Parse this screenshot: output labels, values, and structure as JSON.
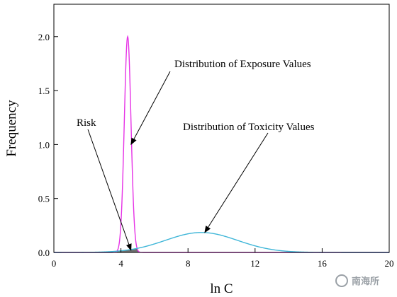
{
  "chart_data": {
    "type": "line",
    "xlabel": "ln C",
    "ylabel": "Frequency",
    "xlim": [
      0,
      20
    ],
    "ylim": [
      0,
      2.3
    ],
    "x_ticks": [
      0,
      4,
      8,
      12,
      16,
      20
    ],
    "y_ticks": [
      0.0,
      0.5,
      1.0,
      1.5,
      2.0
    ],
    "grid": false,
    "series": [
      {
        "id": "exposure",
        "color": "#e633e6",
        "distribution": "normal",
        "mean": 4.4,
        "sd": 0.2,
        "peak": 2.0
      },
      {
        "id": "toxicity",
        "color": "#3fb6d8",
        "distribution": "normal",
        "mean": 8.8,
        "sd": 2.15,
        "peak": 0.185
      }
    ],
    "overlap_color": "#707070",
    "annotations": [
      {
        "text": "Distribution of Exposure Values",
        "target": "exposure",
        "arrow_to": [
          4.6,
          1.0
        ]
      },
      {
        "text": "Distribution of Toxicity Values",
        "target": "toxicity",
        "arrow_to": [
          9.0,
          0.185
        ]
      },
      {
        "text": "Risk",
        "target": "overlap",
        "arrow_to": [
          4.6,
          0.02
        ]
      }
    ]
  },
  "watermark": "南海所"
}
